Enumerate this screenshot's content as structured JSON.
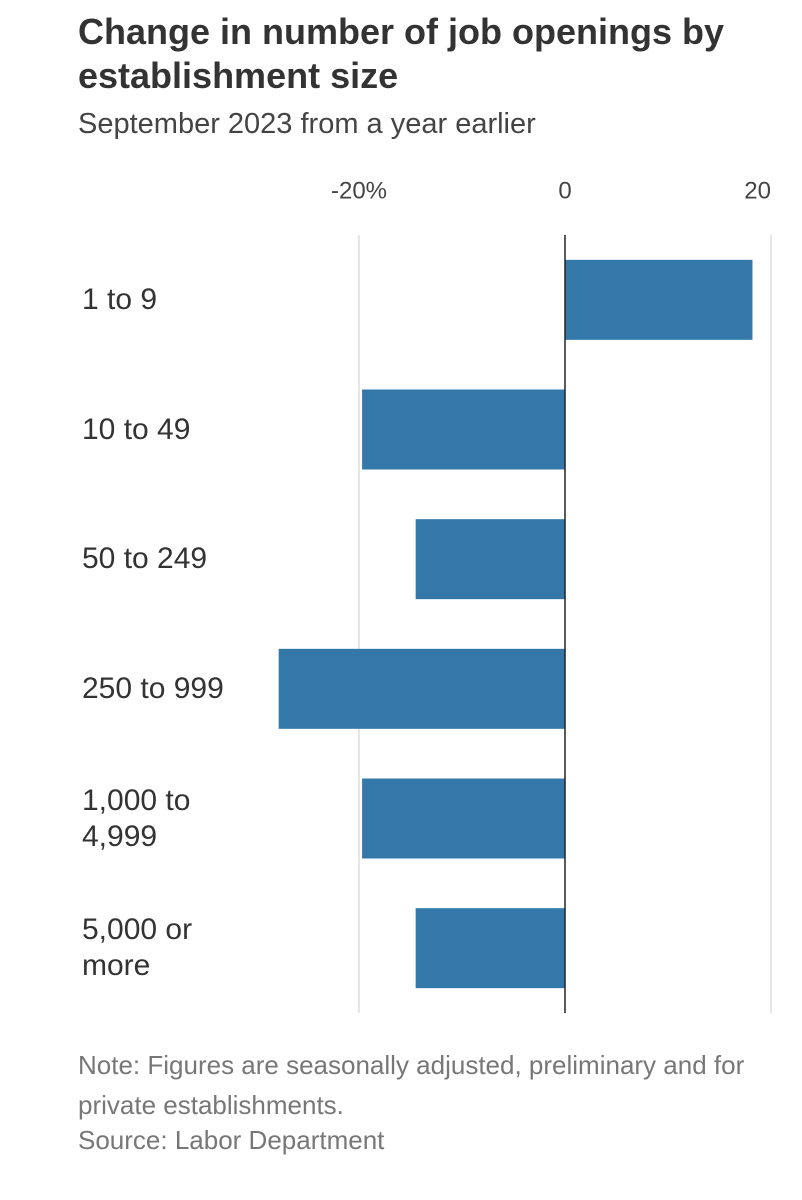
{
  "chart_data": {
    "type": "barh",
    "title": "Change in number of job openings by establishment size",
    "subtitle": "September 2023 from a year earlier",
    "categories": [
      "1 to 9",
      "10 to 49",
      "50 to 249",
      "250 to 999",
      "1,000 to 4,999",
      "5,000 or more"
    ],
    "values": [
      18.2,
      -19.7,
      -14.5,
      -27.8,
      -19.7,
      -14.5
    ],
    "color": "#3478aa",
    "xlim": [
      -28,
      20
    ],
    "xticks": [
      {
        "value": -20,
        "label": "-20%"
      },
      0,
      20
    ],
    "grid": true,
    "note": "Note: Figures are seasonally adjusted, preliminary and for private establishments.",
    "source": "Source: Labor Department"
  }
}
